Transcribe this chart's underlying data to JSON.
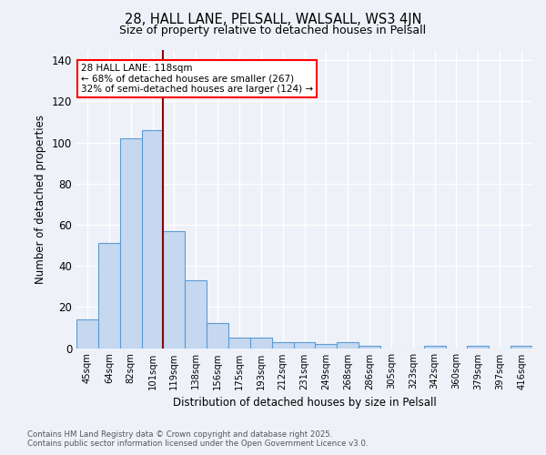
{
  "title1": "28, HALL LANE, PELSALL, WALSALL, WS3 4JN",
  "title2": "Size of property relative to detached houses in Pelsall",
  "xlabel": "Distribution of detached houses by size in Pelsall",
  "ylabel": "Number of detached properties",
  "categories": [
    "45sqm",
    "64sqm",
    "82sqm",
    "101sqm",
    "119sqm",
    "138sqm",
    "156sqm",
    "175sqm",
    "193sqm",
    "212sqm",
    "231sqm",
    "249sqm",
    "268sqm",
    "286sqm",
    "305sqm",
    "323sqm",
    "342sqm",
    "360sqm",
    "379sqm",
    "397sqm",
    "416sqm"
  ],
  "values": [
    14,
    51,
    102,
    106,
    57,
    33,
    12,
    5,
    5,
    3,
    3,
    2,
    3,
    1,
    0,
    0,
    1,
    0,
    1,
    0,
    1
  ],
  "bar_color": "#c5d8f0",
  "bar_edge_color": "#5b9bd5",
  "vline_pos": 3.5,
  "vline_color": "#8b0000",
  "annotation_line1": "28 HALL LANE: 118sqm",
  "annotation_line2": "← 68% of detached houses are smaller (267)",
  "annotation_line3": "32% of semi-detached houses are larger (124) →",
  "ylim": [
    0,
    145
  ],
  "yticks": [
    0,
    20,
    40,
    60,
    80,
    100,
    120,
    140
  ],
  "background_color": "#eef2f8",
  "footer1": "Contains HM Land Registry data © Crown copyright and database right 2025.",
  "footer2": "Contains public sector information licensed under the Open Government Licence v3.0."
}
